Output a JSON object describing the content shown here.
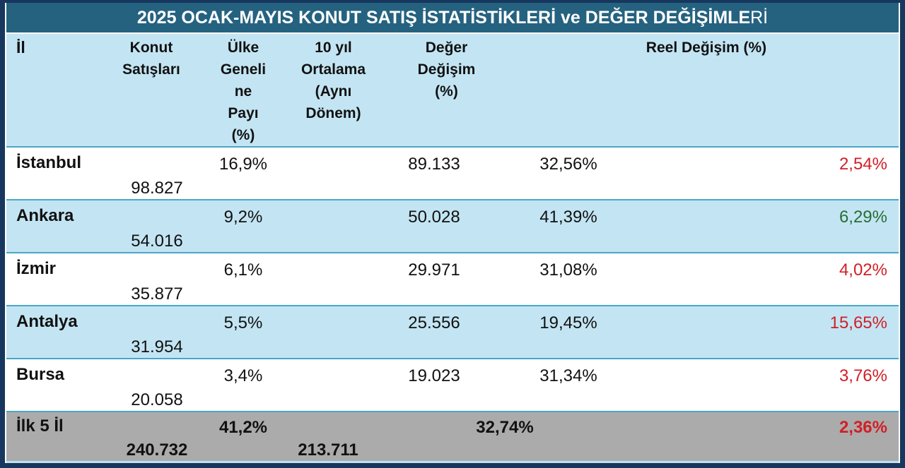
{
  "title_parts": {
    "bold": "2025 OCAK-MAYIS KONUT SATIŞ İSTATİSTİKLERİ ve DEĞER DEĞİŞİMLE",
    "tail": "Rİ"
  },
  "colors": {
    "outer_border": "#17375E",
    "title_bg": "#256280",
    "title_text": "#FFFFFF",
    "header_bg": "#C3E5F3",
    "zebra_blue": "#C3E5F3",
    "zebra_white": "#FFFFFF",
    "total_bg": "#ABABAB",
    "separator": "#4BA6C7",
    "negative_real": "#D11F26",
    "positive_real": "#276E33"
  },
  "chart_data": {
    "type": "table",
    "title": "2025 OCAK-MAYIS KONUT SATIŞ İSTATİSTİKLERİ ve DEĞER DEĞİŞİMLERİ",
    "headers": {
      "il": "İl",
      "sales": "Konut\nSatışları",
      "share": "Ülke\nGeneli\nne\nPayı\n(%)",
      "avg10": "10 yıl\nOrtalama\n(Aynı\nDönem)",
      "value_change": "Değer\nDeğişim\n(%)",
      "real_change": "Reel Değişim (%)"
    },
    "columns": [
      "İl",
      "Konut Satışları",
      "Ülke Geneline Payı (%)",
      "10 yıl Ortalama (Aynı Dönem)",
      "Değer Değişim (%)",
      "Reel Değişim (%)"
    ],
    "rows": [
      {
        "il": "İstanbul",
        "sales": "98.827",
        "share": "16,9%",
        "avg10": "89.133",
        "value_change": "32,56%",
        "real_change": "2,54%",
        "real_hex": "#D11F26"
      },
      {
        "il": "Ankara",
        "sales": "54.016",
        "share": "9,2%",
        "avg10": "50.028",
        "value_change": "41,39%",
        "real_change": "6,29%",
        "real_hex": "#276E33"
      },
      {
        "il": "İzmir",
        "sales": "35.877",
        "share": "6,1%",
        "avg10": "29.971",
        "value_change": "31,08%",
        "real_change": "4,02%",
        "real_hex": "#D11F26"
      },
      {
        "il": "Antalya",
        "sales": "31.954",
        "share": "5,5%",
        "avg10": "25.556",
        "value_change": "19,45%",
        "real_change": "15,65%",
        "real_hex": "#D11F26"
      },
      {
        "il": "Bursa",
        "sales": "20.058",
        "share": "3,4%",
        "avg10": "19.023",
        "value_change": "31,34%",
        "real_change": "3,76%",
        "real_hex": "#D11F26"
      }
    ],
    "total": {
      "il": "İlk 5 İl",
      "sales": "240.732",
      "share": "41,2%",
      "avg10": "213.711",
      "value_change": "32,74%",
      "real_change": "2,36%",
      "real_hex": "#D11F26"
    }
  }
}
